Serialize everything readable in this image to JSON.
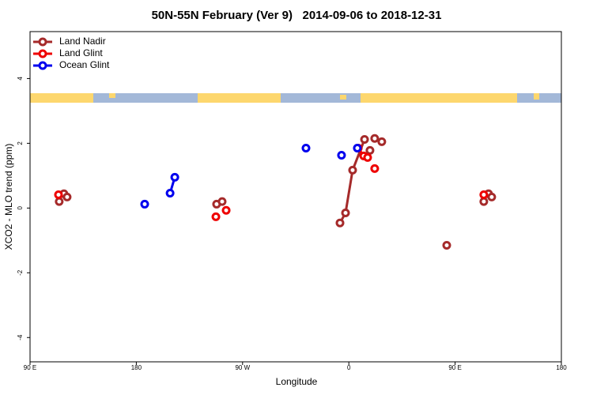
{
  "chart_data": {
    "type": "line",
    "title": "50N-55N February (Ver 9)   2014-09-06 to 2018-12-31",
    "x_label": "Longitude",
    "y_label": "XCO2 - MLO trend (ppm)",
    "xlim": [
      -270,
      180
    ],
    "ylim": [
      -4.75,
      5.45
    ],
    "xticks": [
      {
        "value": -270,
        "label": "90 E"
      },
      {
        "value": -180,
        "label": "180"
      },
      {
        "value": -90,
        "label": "90 W"
      },
      0,
      {
        "value": 90,
        "label": "90 E"
      },
      180
    ],
    "yticks": [
      -4,
      -2,
      0,
      2,
      4
    ],
    "legend": "top-left",
    "series": [
      {
        "name": "Land Nadir",
        "color": "#a52a2a",
        "x": [
          -245.3,
          null,
          -241.3,
          null,
          -238.6,
          null,
          -112,
          null,
          -107.3,
          null,
          -7.5,
          -2.8,
          3.2,
          13.3,
          null,
          17.9,
          null,
          21.9,
          null,
          27.9,
          null,
          82.9,
          null,
          114.3,
          null,
          118.3,
          null,
          121
        ],
        "values": [
          0.2,
          null,
          0.44,
          null,
          0.34,
          null,
          0.12,
          null,
          0.2,
          null,
          -0.46,
          -0.15,
          1.17,
          2.12,
          null,
          1.78,
          null,
          2.15,
          null,
          2.05,
          null,
          -1.15,
          null,
          0.2,
          null,
          0.44,
          null,
          0.34
        ]
      },
      {
        "name": "Land Glint",
        "color": "#ee0000",
        "x": [
          -245.9,
          null,
          -112.6,
          null,
          -103.9,
          null,
          8,
          12.6,
          15.9,
          null,
          21.9,
          null,
          114.3
        ],
        "values": [
          0.41,
          null,
          -0.27,
          null,
          -0.07,
          null,
          1.85,
          1.61,
          1.56,
          null,
          1.22,
          null,
          0.41
        ]
      },
      {
        "name": "Ocean Glint",
        "color": "#0000ee",
        "x": [
          -172.9,
          null,
          -151.4,
          -147.4,
          null,
          -36.3,
          null,
          -6.2,
          null,
          7.2
        ],
        "values": [
          0.12,
          null,
          0.46,
          0.95,
          null,
          1.85,
          null,
          1.63,
          null,
          1.85
        ]
      }
    ]
  }
}
